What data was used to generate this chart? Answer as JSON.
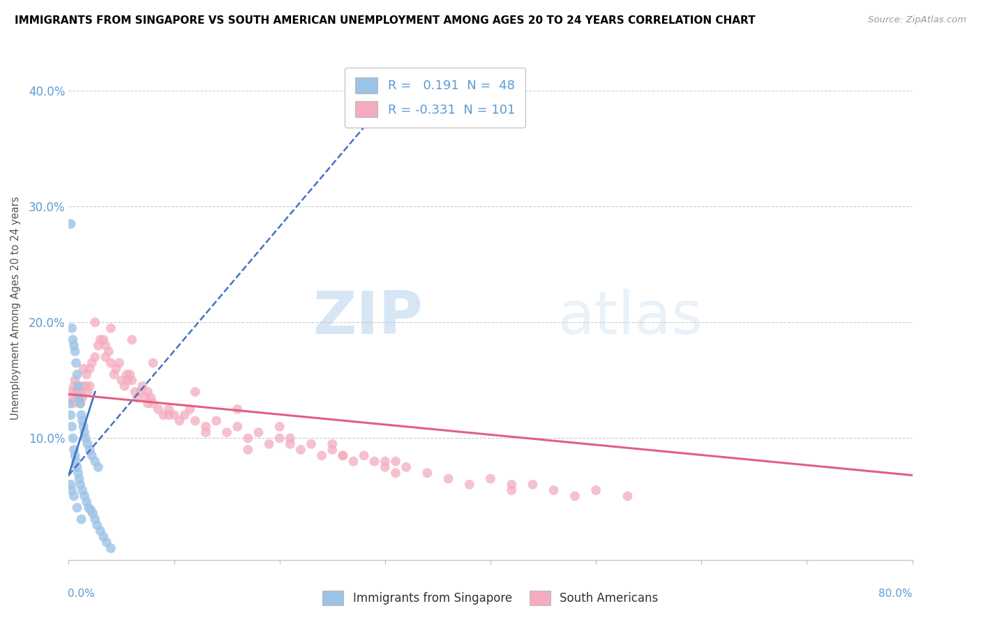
{
  "title": "IMMIGRANTS FROM SINGAPORE VS SOUTH AMERICAN UNEMPLOYMENT AMONG AGES 20 TO 24 YEARS CORRELATION CHART",
  "source": "Source: ZipAtlas.com",
  "ylabel": "Unemployment Among Ages 20 to 24 years",
  "ytick_vals": [
    0.0,
    0.1,
    0.2,
    0.3,
    0.4
  ],
  "ytick_labels": [
    "",
    "10.0%",
    "20.0%",
    "30.0%",
    "40.0%"
  ],
  "xlim": [
    0.0,
    0.8
  ],
  "ylim": [
    -0.005,
    0.43
  ],
  "blue_color": "#9dc3e6",
  "pink_color": "#f4acbe",
  "blue_line_color": "#4472c4",
  "pink_line_color": "#e06080",
  "watermark_zip": "ZIP",
  "watermark_atlas": "atlas",
  "legend1_r": "0.191",
  "legend1_n": "48",
  "legend2_r": "-0.331",
  "legend2_n": "101",
  "blue_scatter_x": [
    0.002,
    0.003,
    0.004,
    0.005,
    0.006,
    0.007,
    0.008,
    0.009,
    0.01,
    0.011,
    0.012,
    0.013,
    0.014,
    0.015,
    0.016,
    0.018,
    0.02,
    0.022,
    0.025,
    0.028,
    0.001,
    0.002,
    0.003,
    0.004,
    0.005,
    0.006,
    0.007,
    0.008,
    0.009,
    0.01,
    0.011,
    0.013,
    0.015,
    0.017,
    0.019,
    0.021,
    0.023,
    0.025,
    0.027,
    0.03,
    0.033,
    0.036,
    0.04,
    0.002,
    0.003,
    0.005,
    0.008,
    0.012
  ],
  "blue_scatter_y": [
    0.285,
    0.195,
    0.185,
    0.18,
    0.175,
    0.165,
    0.155,
    0.145,
    0.135,
    0.13,
    0.12,
    0.115,
    0.11,
    0.105,
    0.1,
    0.095,
    0.09,
    0.085,
    0.08,
    0.075,
    0.13,
    0.12,
    0.11,
    0.1,
    0.09,
    0.085,
    0.08,
    0.075,
    0.07,
    0.065,
    0.06,
    0.055,
    0.05,
    0.045,
    0.04,
    0.038,
    0.035,
    0.03,
    0.025,
    0.02,
    0.015,
    0.01,
    0.005,
    0.06,
    0.055,
    0.05,
    0.04,
    0.03
  ],
  "pink_scatter_x": [
    0.002,
    0.003,
    0.004,
    0.005,
    0.006,
    0.007,
    0.008,
    0.009,
    0.01,
    0.011,
    0.012,
    0.013,
    0.014,
    0.015,
    0.016,
    0.017,
    0.018,
    0.02,
    0.022,
    0.025,
    0.028,
    0.03,
    0.033,
    0.035,
    0.038,
    0.04,
    0.043,
    0.045,
    0.048,
    0.05,
    0.053,
    0.056,
    0.058,
    0.06,
    0.063,
    0.065,
    0.068,
    0.07,
    0.073,
    0.075,
    0.078,
    0.08,
    0.085,
    0.09,
    0.095,
    0.1,
    0.105,
    0.11,
    0.115,
    0.12,
    0.13,
    0.14,
    0.15,
    0.16,
    0.17,
    0.18,
    0.19,
    0.2,
    0.21,
    0.22,
    0.23,
    0.24,
    0.25,
    0.26,
    0.27,
    0.28,
    0.29,
    0.3,
    0.31,
    0.32,
    0.34,
    0.36,
    0.38,
    0.4,
    0.42,
    0.44,
    0.46,
    0.48,
    0.5,
    0.53,
    0.01,
    0.025,
    0.04,
    0.06,
    0.08,
    0.12,
    0.16,
    0.2,
    0.25,
    0.3,
    0.02,
    0.035,
    0.055,
    0.075,
    0.095,
    0.13,
    0.17,
    0.21,
    0.26,
    0.31,
    0.42
  ],
  "pink_scatter_y": [
    0.14,
    0.135,
    0.13,
    0.145,
    0.15,
    0.14,
    0.135,
    0.14,
    0.145,
    0.13,
    0.14,
    0.135,
    0.16,
    0.145,
    0.145,
    0.155,
    0.14,
    0.16,
    0.165,
    0.17,
    0.18,
    0.185,
    0.185,
    0.18,
    0.175,
    0.165,
    0.155,
    0.16,
    0.165,
    0.15,
    0.145,
    0.15,
    0.155,
    0.15,
    0.14,
    0.135,
    0.14,
    0.145,
    0.135,
    0.13,
    0.135,
    0.13,
    0.125,
    0.12,
    0.125,
    0.12,
    0.115,
    0.12,
    0.125,
    0.115,
    0.11,
    0.115,
    0.105,
    0.11,
    0.1,
    0.105,
    0.095,
    0.1,
    0.095,
    0.09,
    0.095,
    0.085,
    0.09,
    0.085,
    0.08,
    0.085,
    0.08,
    0.075,
    0.08,
    0.075,
    0.07,
    0.065,
    0.06,
    0.065,
    0.055,
    0.06,
    0.055,
    0.05,
    0.055,
    0.05,
    0.135,
    0.2,
    0.195,
    0.185,
    0.165,
    0.14,
    0.125,
    0.11,
    0.095,
    0.08,
    0.145,
    0.17,
    0.155,
    0.14,
    0.12,
    0.105,
    0.09,
    0.1,
    0.085,
    0.07,
    0.06
  ],
  "blue_trendline_x": [
    0.0,
    0.3
  ],
  "blue_trendline_y": [
    0.068,
    0.39
  ],
  "pink_trendline_x": [
    0.0,
    0.8
  ],
  "pink_trendline_y": [
    0.138,
    0.068
  ]
}
